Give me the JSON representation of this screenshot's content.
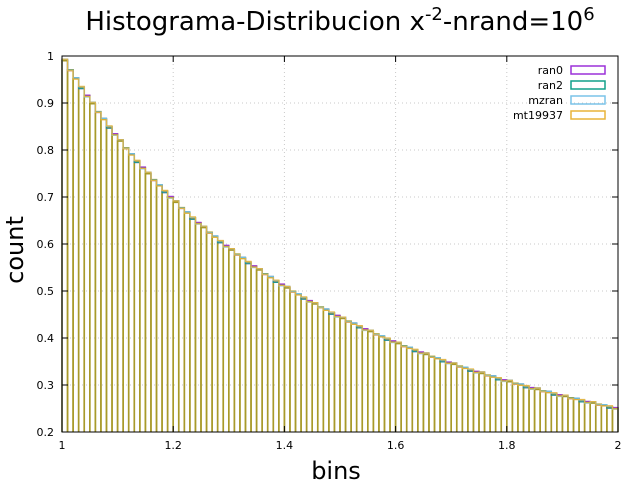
{
  "chart_data": {
    "type": "bar",
    "title_main": "Histograma-Distribucion x",
    "title_exp1": "-2",
    "title_mid": "-nrand=10",
    "title_exp2": "6",
    "xlabel": "bins",
    "ylabel": "count",
    "xlim": [
      1,
      2
    ],
    "ylim": [
      0.2,
      1
    ],
    "x_ticks": [
      "1",
      "1.2",
      "1.4",
      "1.6",
      "1.8",
      "2"
    ],
    "y_ticks": [
      "0.2",
      "0.3",
      "0.4",
      "0.5",
      "0.6",
      "0.7",
      "0.8",
      "0.9",
      "1"
    ],
    "grid": true,
    "legend_position": "top-right",
    "bins": 100,
    "bin_width": 0.01,
    "series": [
      {
        "name": "ran0",
        "color": "#9b30d9",
        "formula": "1/x^2",
        "jitter": [
          0.003,
          -0.002,
          0.002,
          -0.003,
          0.001
        ]
      },
      {
        "name": "ran2",
        "color": "#12a08a",
        "formula": "1/x^2",
        "jitter": [
          -0.002,
          0.003,
          -0.001,
          0.002,
          -0.003
        ]
      },
      {
        "name": "mzran",
        "color": "#7ac3e8",
        "formula": "1/x^2",
        "jitter": [
          0.001,
          -0.003,
          0.003,
          -0.001,
          0.002
        ]
      },
      {
        "name": "mt19937",
        "color": "#e8b43a",
        "formula": "1/x^2",
        "jitter": [
          -0.001,
          0.002,
          -0.002,
          0.003,
          -0.002
        ]
      }
    ],
    "overlap_color": "#a89a2a"
  }
}
